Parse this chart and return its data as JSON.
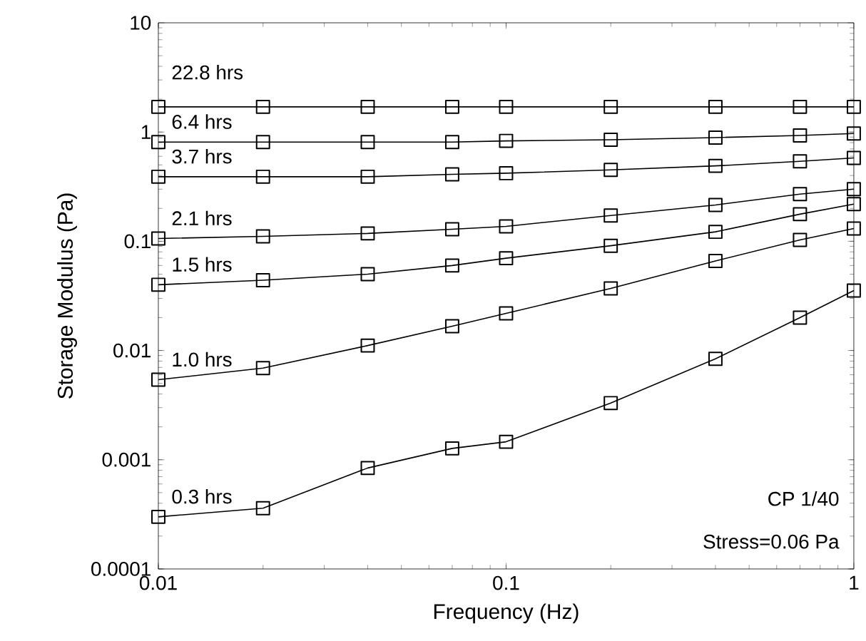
{
  "chart_data": {
    "type": "line",
    "xlabel": "Frequency (Hz)",
    "ylabel": "Storage Modulus (Pa)",
    "log": "xy",
    "legend": "left",
    "marker": "square",
    "line_style": "solid",
    "x": [
      0.01,
      0.02,
      0.04,
      0.07,
      0.1,
      0.2,
      0.4,
      0.7,
      1
    ],
    "xlim": [
      0.01,
      1
    ],
    "xticks": [
      0.01,
      0.1,
      1
    ],
    "ylim": [
      0.0001,
      10
    ],
    "yticks": [
      0.0001,
      0.001,
      0.01,
      0.1,
      1,
      10
    ],
    "series": [
      {
        "name": "22.8 hrs",
        "color": "#000000",
        "values": [
          1.7,
          1.7,
          1.7,
          1.7,
          1.7,
          1.7,
          1.7,
          1.7,
          1.7
        ]
      },
      {
        "name": "6.4 hrs",
        "color": "#000000",
        "values": [
          0.81,
          0.81,
          0.81,
          0.81,
          0.83,
          0.85,
          0.89,
          0.93,
          0.97
        ]
      },
      {
        "name": "3.7 hrs",
        "color": "#000000",
        "values": [
          0.39,
          0.39,
          0.39,
          0.41,
          0.42,
          0.45,
          0.49,
          0.54,
          0.58
        ]
      },
      {
        "name": "2.1 hrs",
        "color": "#000000",
        "values": [
          0.106,
          0.111,
          0.118,
          0.129,
          0.137,
          0.172,
          0.215,
          0.27,
          0.3
        ]
      },
      {
        "name": "1.5 hrs",
        "color": "#000000",
        "values": [
          0.04,
          0.044,
          0.05,
          0.06,
          0.07,
          0.091,
          0.122,
          0.177,
          0.219
        ]
      },
      {
        "name": "1.0 hrs",
        "color": "#000000",
        "values": [
          0.0054,
          0.0069,
          0.0111,
          0.0167,
          0.0219,
          0.037,
          0.066,
          0.103,
          0.131
        ]
      },
      {
        "name": "0.3 hrs",
        "color": "#000000",
        "values": [
          0.0003,
          0.00036,
          0.00084,
          0.00127,
          0.00146,
          0.0033,
          0.0084,
          0.02,
          0.0354
        ]
      }
    ],
    "annotations": [
      "CP 1/40",
      "Stress=0.06 Pa"
    ]
  }
}
